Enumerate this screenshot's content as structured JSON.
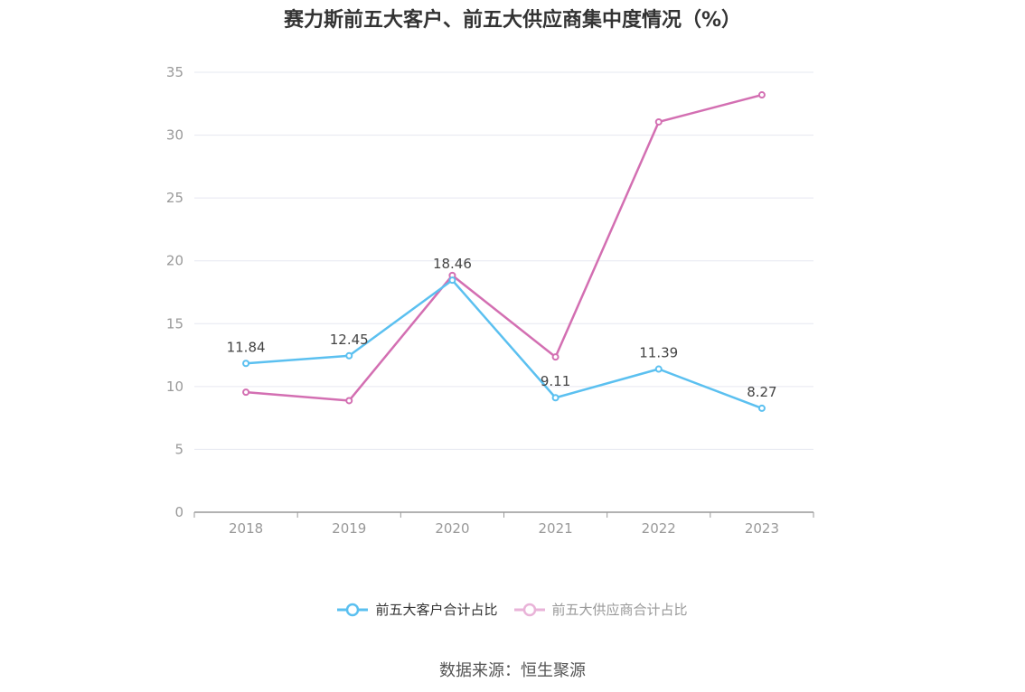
{
  "title": "赛力斯前五大客户、前五大供应商集中度情况（%）",
  "source": "数据来源：恒生聚源",
  "colors": {
    "customers": "#5bc0f0",
    "suppliers": "#d36fb2",
    "grid": "#e6e8f0",
    "axis": "#999999"
  },
  "chart_data": {
    "type": "line",
    "title": "赛力斯前五大客户、前五大供应商集中度情况（%）",
    "x": [
      "2018",
      "2019",
      "2020",
      "2021",
      "2022",
      "2023"
    ],
    "ylim": [
      0,
      35
    ],
    "yticks": [
      0,
      5,
      10,
      15,
      20,
      25,
      30,
      35
    ],
    "grid": true,
    "legend": "bottom-center",
    "series": [
      {
        "name": "前五大客户合计占比",
        "values": [
          11.84,
          12.45,
          18.46,
          9.11,
          11.39,
          8.27
        ],
        "labels_shown": true
      },
      {
        "name": "前五大供应商合计占比",
        "values": [
          9.55,
          8.88,
          18.84,
          12.35,
          31.05,
          33.2
        ],
        "labels_shown": false
      }
    ]
  }
}
